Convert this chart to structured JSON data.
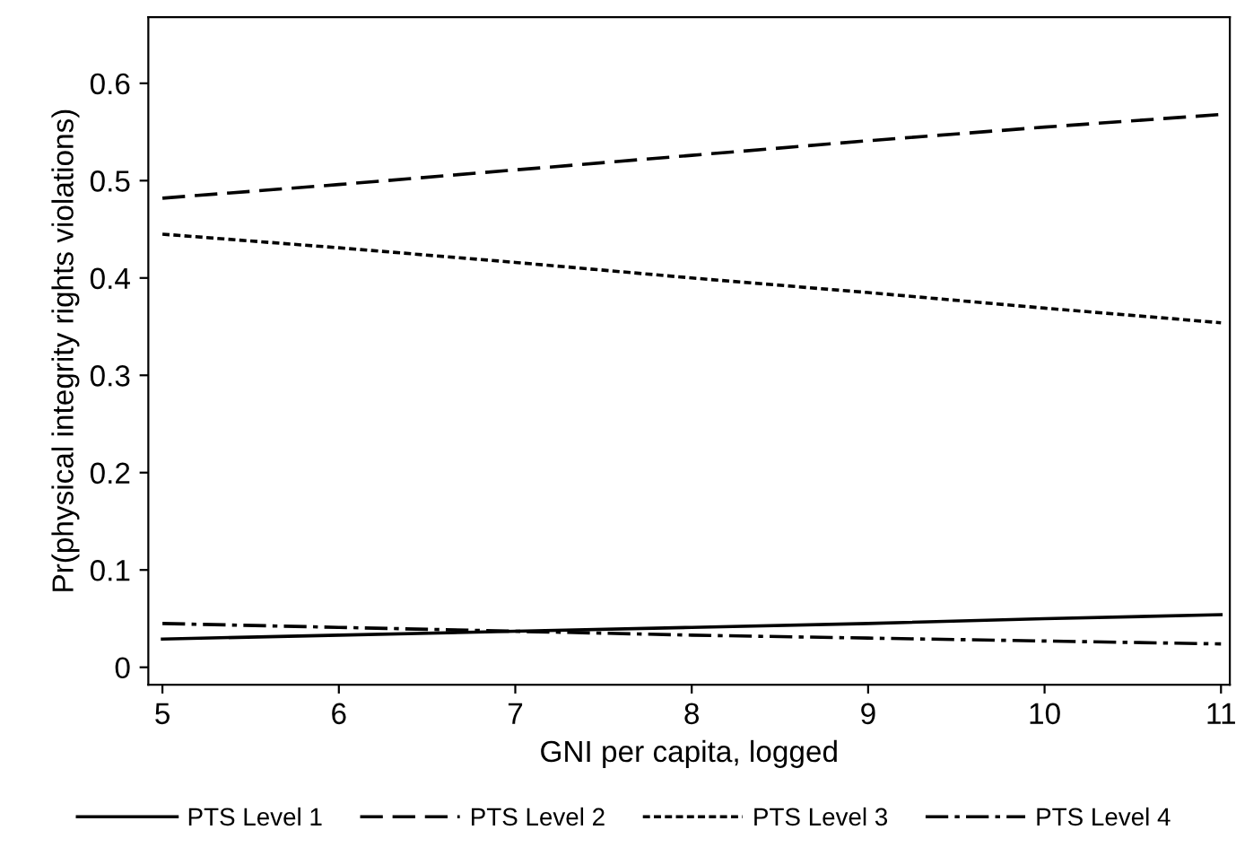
{
  "chart_data": {
    "type": "line",
    "xlabel": "GNI per capita, logged",
    "ylabel": "Pr(physical integrity rights violations)",
    "x": [
      5,
      6,
      7,
      8,
      9,
      10,
      11
    ],
    "series": [
      {
        "name": "PTS Level 1",
        "color": "#000000",
        "line_style": "solid",
        "values": [
          0.029,
          0.033,
          0.037,
          0.041,
          0.045,
          0.05,
          0.054
        ]
      },
      {
        "name": "PTS Level 2",
        "color": "#000000",
        "line_style": "dashed",
        "values": [
          0.482,
          0.496,
          0.511,
          0.526,
          0.541,
          0.555,
          0.568
        ]
      },
      {
        "name": "PTS Level 3",
        "color": "#000000",
        "line_style": "dotted",
        "values": [
          0.445,
          0.431,
          0.416,
          0.4,
          0.385,
          0.369,
          0.354
        ]
      },
      {
        "name": "PTS Level 4",
        "color": "#000000",
        "line_style": "dashdot",
        "values": [
          0.045,
          0.041,
          0.037,
          0.033,
          0.03,
          0.027,
          0.024
        ]
      }
    ],
    "xlim": [
      4.92,
      11.05
    ],
    "xticks": [
      5,
      6,
      7,
      8,
      9,
      10,
      11
    ],
    "ylim": [
      -0.018,
      0.668
    ],
    "yticks": [
      0,
      0.1,
      0.2,
      0.3,
      0.4,
      0.5,
      0.6
    ],
    "grid": false,
    "legend": "bottom",
    "marker": "none"
  }
}
